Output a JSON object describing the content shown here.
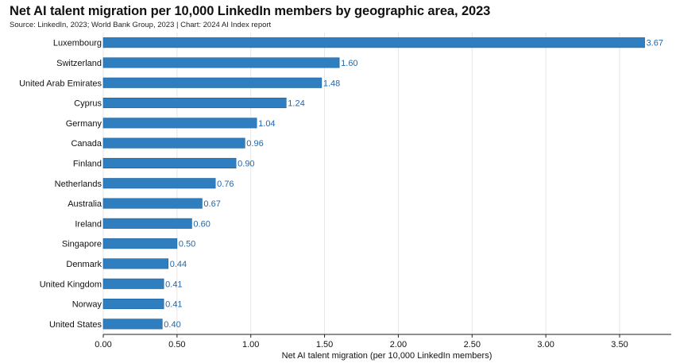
{
  "header": {
    "title": "Net AI talent migration per 10,000 LinkedIn members by geographic area, 2023",
    "source": "Source: LinkedIn, 2023; World Bank Group, 2023 | Chart: 2024 AI Index report"
  },
  "colors": {
    "bar": "#2f7ec0",
    "bar_stroke": "#1f5f99",
    "value_label": "#2266aa",
    "grid": "#e6e6e6",
    "axis": "#222222"
  },
  "chart_data": {
    "type": "bar",
    "orientation": "horizontal",
    "categories": [
      "Luxembourg",
      "Switzerland",
      "United Arab Emirates",
      "Cyprus",
      "Germany",
      "Canada",
      "Finland",
      "Netherlands",
      "Australia",
      "Ireland",
      "Singapore",
      "Denmark",
      "United Kingdom",
      "Norway",
      "United States"
    ],
    "values": [
      3.67,
      1.6,
      1.48,
      1.24,
      1.04,
      0.96,
      0.9,
      0.76,
      0.67,
      0.6,
      0.5,
      0.44,
      0.41,
      0.41,
      0.4
    ],
    "value_labels": [
      "3.67",
      "1.60",
      "1.48",
      "1.24",
      "1.04",
      "0.96",
      "0.90",
      "0.76",
      "0.67",
      "0.60",
      "0.50",
      "0.44",
      "0.41",
      "0.41",
      "0.40"
    ],
    "xlim": [
      0,
      3.85
    ],
    "xticks": [
      0,
      0.5,
      1.0,
      1.5,
      2.0,
      2.5,
      3.0,
      3.5
    ],
    "xtick_labels": [
      "0.00",
      "0.50",
      "1.00",
      "1.50",
      "2.00",
      "2.50",
      "3.00",
      "3.50"
    ],
    "xlabel": "Net AI talent migration (per 10,000 LinkedIn members)",
    "ylabel": "",
    "grid": true,
    "legend": false
  }
}
